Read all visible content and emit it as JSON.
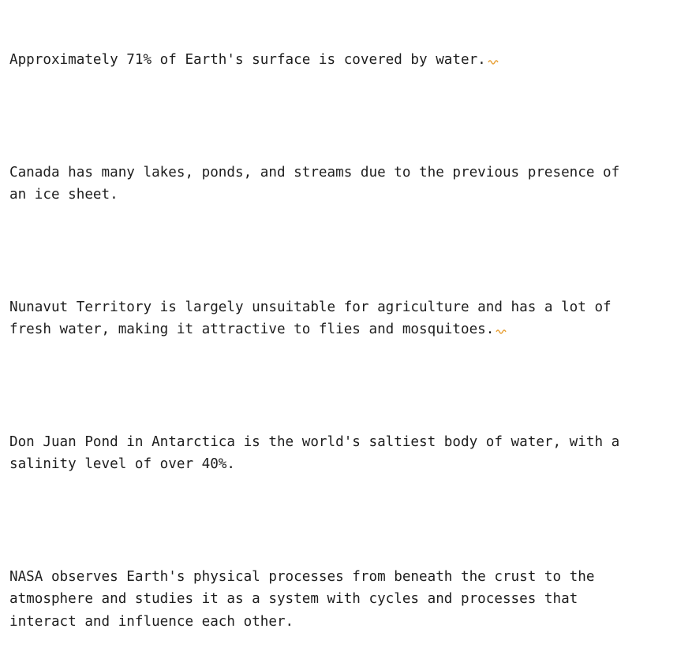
{
  "editor": {
    "paragraphs": [
      {
        "lines": [
          "Approximately 71% of Earth's surface is covered by water."
        ],
        "has_squiggle": true
      },
      {
        "lines": [
          "Canada has many lakes, ponds, and streams due to the previous presence of",
          "an ice sheet."
        ],
        "has_squiggle": false
      },
      {
        "lines": [
          "Nunavut Territory is largely unsuitable for agriculture and has a lot of",
          "fresh water, making it attractive to flies and mosquitoes."
        ],
        "has_squiggle": true
      },
      {
        "lines": [
          "Don Juan Pond in Antarctica is the world's saltiest body of water, with a",
          "salinity level of over 40%."
        ],
        "has_squiggle": false
      },
      {
        "lines": [
          "NASA observes Earth's physical processes from beneath the crust to the",
          "atmosphere and studies it as a system with cycles and processes that",
          "interact and influence each other."
        ],
        "has_squiggle": false
      }
    ],
    "squiggle_color": "#e8a23a"
  }
}
